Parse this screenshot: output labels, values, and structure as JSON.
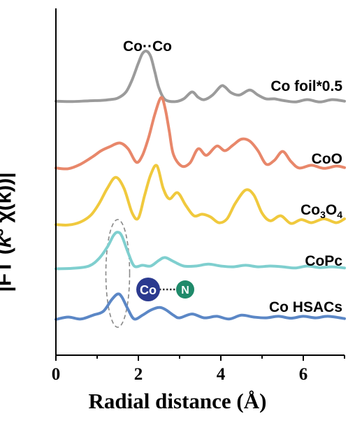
{
  "chart_data": {
    "type": "line",
    "xlabel": "Radial distance (Å)",
    "ylabel": "|FT (k³ χ(k))|",
    "ylabel_parts": {
      "pre": "|FT (",
      "k": "k",
      "exp": "3",
      "post": " χ(k))|"
    },
    "xlim": [
      0,
      7
    ],
    "xticks": [
      0,
      2,
      4,
      6
    ],
    "yticks_shown": false,
    "grid": false,
    "legend": "none (labels drawn beside each curve)",
    "annotations": {
      "peak_label": "Co··Co",
      "bond_left": "Co",
      "bond_right": "N",
      "co_color": "#2b3a8f",
      "n_color": "#1f8a6a"
    },
    "series": [
      {
        "name": "Co foil*0.5",
        "label_parts": [
          {
            "t": "Co foil*0.5",
            "sub": false
          }
        ],
        "color": "#9b9b9b",
        "x": [
          0,
          0.4,
          0.8,
          1.1,
          1.3,
          1.5,
          1.7,
          1.85,
          2.0,
          2.1,
          2.2,
          2.3,
          2.4,
          2.5,
          2.65,
          2.9,
          3.1,
          3.3,
          3.45,
          3.6,
          3.8,
          4.0,
          4.1,
          4.25,
          4.45,
          4.7,
          4.9,
          5.1,
          5.3,
          5.5,
          5.8,
          6.1,
          6.4,
          6.7,
          7.0
        ],
        "y": [
          0.06,
          0.05,
          0.07,
          0.08,
          0.1,
          0.14,
          0.3,
          0.62,
          1.05,
          1.3,
          1.36,
          1.22,
          0.82,
          0.4,
          0.1,
          0.05,
          0.12,
          0.3,
          0.16,
          0.1,
          0.22,
          0.45,
          0.43,
          0.28,
          0.22,
          0.35,
          0.22,
          0.12,
          0.12,
          0.08,
          0.04,
          0.1,
          0.04,
          0.1,
          0.06
        ]
      },
      {
        "name": "CoO",
        "label_parts": [
          {
            "t": "CoO",
            "sub": false
          }
        ],
        "color": "#e8876a",
        "x": [
          0,
          0.3,
          0.6,
          0.9,
          1.1,
          1.3,
          1.55,
          1.75,
          1.95,
          2.1,
          2.25,
          2.4,
          2.55,
          2.65,
          2.75,
          2.85,
          3.05,
          3.25,
          3.45,
          3.65,
          3.9,
          4.1,
          4.3,
          4.5,
          4.7,
          4.9,
          5.1,
          5.3,
          5.5,
          5.7,
          5.9,
          6.2,
          6.5,
          6.8,
          7.0
        ],
        "y": [
          0.05,
          0.03,
          0.15,
          0.35,
          0.5,
          0.6,
          0.7,
          0.55,
          0.2,
          0.38,
          0.85,
          1.45,
          1.88,
          1.6,
          1.0,
          0.4,
          0.1,
          0.18,
          0.55,
          0.38,
          0.62,
          0.5,
          0.65,
          0.8,
          0.75,
          0.5,
          0.15,
          0.25,
          0.48,
          0.22,
          0.05,
          0.12,
          0.04,
          0.1,
          0.06
        ]
      },
      {
        "name": "Co3O4",
        "label_parts": [
          {
            "t": "Co",
            "sub": false
          },
          {
            "t": "3",
            "sub": true
          },
          {
            "t": "O",
            "sub": false
          },
          {
            "t": "4",
            "sub": true
          }
        ],
        "color": "#f0c93d",
        "x": [
          0,
          0.3,
          0.6,
          0.85,
          1.05,
          1.25,
          1.45,
          1.65,
          1.85,
          2.0,
          2.15,
          2.3,
          2.45,
          2.6,
          2.75,
          2.95,
          3.15,
          3.35,
          3.55,
          3.75,
          3.95,
          4.15,
          4.35,
          4.6,
          4.8,
          5.0,
          5.2,
          5.45,
          5.7,
          5.95,
          6.2,
          6.5,
          6.8,
          7.0
        ],
        "y": [
          0.05,
          0.04,
          0.12,
          0.3,
          0.6,
          1.0,
          1.28,
          1.0,
          0.35,
          0.22,
          0.8,
          1.35,
          1.58,
          1.0,
          0.72,
          0.88,
          0.55,
          0.28,
          0.32,
          0.25,
          0.1,
          0.2,
          0.6,
          0.95,
          0.82,
          0.35,
          0.15,
          0.28,
          0.08,
          0.18,
          0.1,
          0.2,
          0.1,
          0.2
        ]
      },
      {
        "name": "CoPc",
        "label_parts": [
          {
            "t": "CoPc",
            "sub": false
          }
        ],
        "color": "#7fcfcf",
        "x": [
          0,
          0.4,
          0.8,
          1.05,
          1.25,
          1.4,
          1.5,
          1.6,
          1.75,
          1.9,
          2.1,
          2.3,
          2.5,
          2.65,
          2.85,
          3.1,
          3.4,
          3.7,
          4.0,
          4.3,
          4.6,
          4.9,
          5.2,
          5.5,
          5.8,
          6.1,
          6.4,
          6.7,
          7.0
        ],
        "y": [
          0.03,
          0.04,
          0.1,
          0.3,
          0.6,
          0.9,
          0.98,
          0.88,
          0.45,
          0.1,
          0.12,
          0.1,
          0.25,
          0.32,
          0.22,
          0.1,
          0.1,
          0.15,
          0.1,
          0.08,
          0.12,
          0.08,
          0.1,
          0.08,
          0.05,
          0.1,
          0.06,
          0.08,
          0.05
        ]
      },
      {
        "name": "Co HSACs",
        "label_parts": [
          {
            "t": "Co HSACs",
            "sub": false
          }
        ],
        "color": "#5b87c6",
        "x": [
          0,
          0.3,
          0.6,
          0.9,
          1.15,
          1.35,
          1.5,
          1.6,
          1.75,
          1.9,
          2.1,
          2.3,
          2.5,
          2.65,
          2.85,
          3.0,
          3.3,
          3.6,
          3.9,
          4.2,
          4.5,
          4.8,
          5.1,
          5.4,
          5.7,
          6.0,
          6.3,
          6.6,
          7.0
        ],
        "y": [
          0.04,
          0.1,
          0.05,
          0.15,
          0.25,
          0.55,
          0.7,
          0.62,
          0.3,
          0.05,
          0.15,
          0.28,
          0.35,
          0.3,
          0.15,
          0.08,
          0.18,
          0.08,
          0.12,
          0.05,
          0.15,
          0.1,
          0.08,
          0.12,
          0.07,
          0.12,
          0.08,
          0.12,
          0.06
        ]
      }
    ]
  }
}
